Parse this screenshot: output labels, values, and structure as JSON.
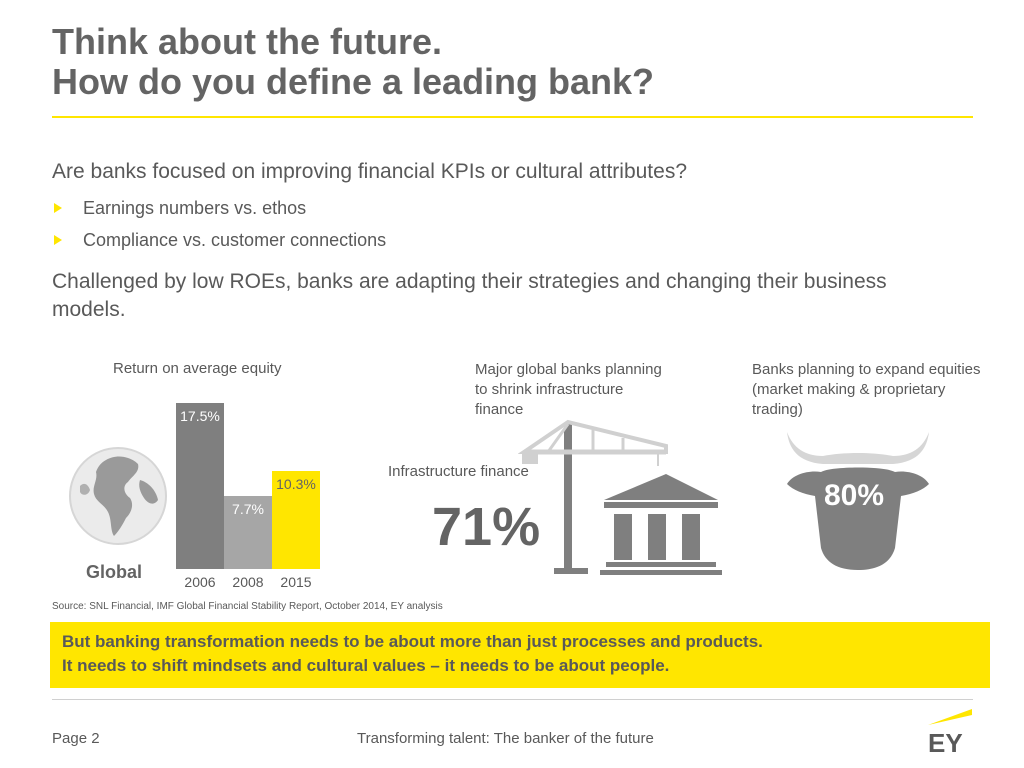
{
  "header": {
    "title_line1": "Think about the future.",
    "title_line2": "How do you define a leading bank?"
  },
  "intro": {
    "question": "Are banks focused on improving financial KPIs or cultural attributes?",
    "bullets": [
      "Earnings numbers vs. ethos",
      "Compliance vs. customer connections"
    ],
    "challenge": "Challenged by low ROEs, banks are adapting their strategies and changing their business models."
  },
  "roe": {
    "title": "Return on average equity",
    "region_label": "Global"
  },
  "chart_data": {
    "type": "bar",
    "title": "Return on average equity",
    "categories": [
      "2006",
      "2008",
      "2015"
    ],
    "values": [
      17.5,
      7.7,
      10.3
    ],
    "value_labels": [
      "17.5%",
      "7.7%",
      "10.3%"
    ],
    "colors": [
      "#7f7f7f",
      "#a6a6a6",
      "#ffe600"
    ],
    "label_colors": [
      "#ffffff",
      "#ffffff",
      "#646464"
    ],
    "ylim": [
      0,
      17.5
    ]
  },
  "shrink": {
    "title": "Major global banks planning to shrink infrastructure finance",
    "label": "Infrastructure finance",
    "value": "71%"
  },
  "expand": {
    "title": "Banks planning to expand equities (market making & proprietary trading)",
    "value": "80%"
  },
  "source": "Source: SNL Financial, IMF Global Financial Stability Report, October 2014, EY analysis",
  "callout": {
    "line1": "But banking transformation needs to be about more than just processes and products.",
    "line2": "It needs to shift mindsets and cultural values – it needs to be about people."
  },
  "footer": {
    "page": "Page 2",
    "title": "Transforming talent: The banker of the future",
    "logo_text": "EY"
  },
  "colors": {
    "accent": "#ffe600",
    "text": "#595959",
    "dark_gray": "#646464"
  }
}
